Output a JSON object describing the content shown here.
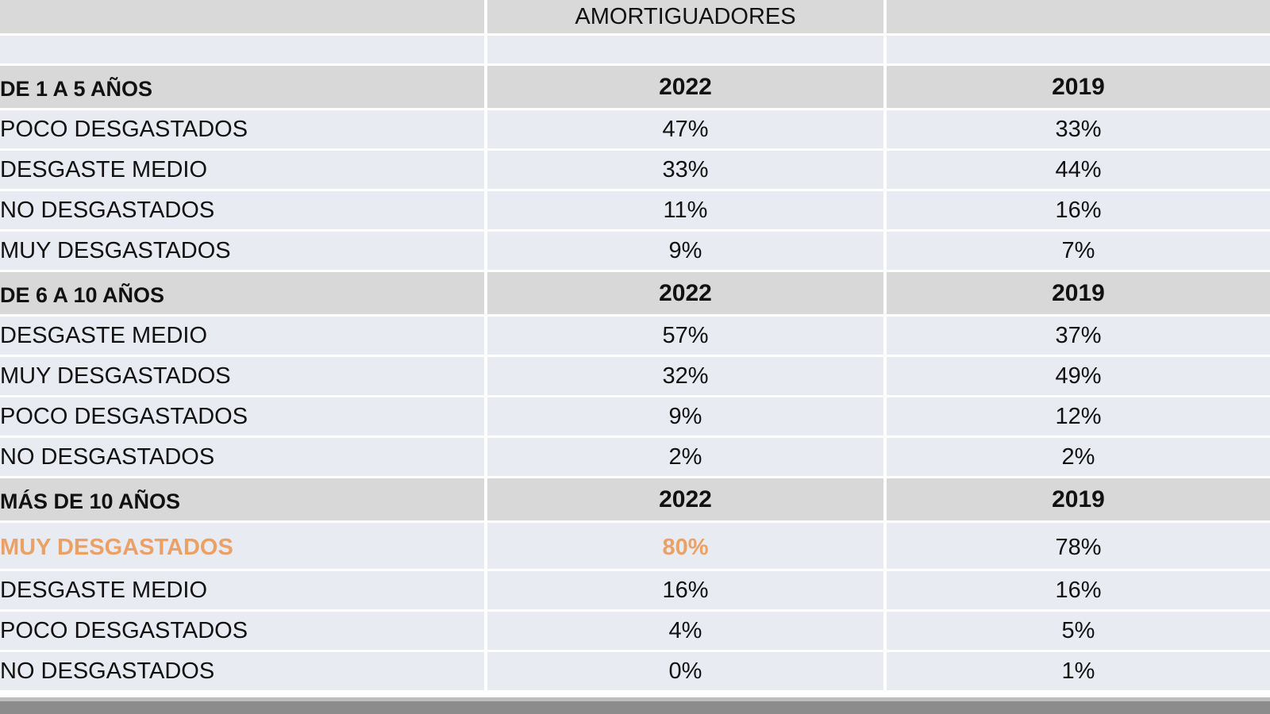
{
  "header": {
    "title": "AMORTIGUADORES"
  },
  "sections": [
    {
      "label": "DE 1 A 5 AÑOS",
      "year_a": "2022",
      "year_b": "2019",
      "rows": [
        {
          "label": "POCO DESGASTADOS",
          "a": "47%",
          "b": "33%"
        },
        {
          "label": "DESGASTE MEDIO",
          "a": "33%",
          "b": "44%"
        },
        {
          "label": "NO DESGASTADOS",
          "a": "11%",
          "b": "16%"
        },
        {
          "label": "MUY DESGASTADOS",
          "a": "9%",
          "b": "7%"
        }
      ]
    },
    {
      "label": "DE 6 A 10 AÑOS",
      "year_a": "2022",
      "year_b": "2019",
      "rows": [
        {
          "label": "DESGASTE MEDIO",
          "a": "57%",
          "b": "37%"
        },
        {
          "label": "MUY DESGASTADOS",
          "a": "32%",
          "b": "49%"
        },
        {
          "label": "POCO DESGASTADOS",
          "a": "9%",
          "b": "12%"
        },
        {
          "label": "NO DESGASTADOS",
          "a": "2%",
          "b": "2%"
        }
      ]
    },
    {
      "label": "MÁS DE 10 AÑOS",
      "year_a": "2022",
      "year_b": "2019",
      "rows": [
        {
          "label": "MUY DESGASTADOS",
          "a": "80%",
          "b": "78%"
        },
        {
          "label": "DESGASTE MEDIO",
          "a": "16%",
          "b": "16%"
        },
        {
          "label": "POCO DESGASTADOS",
          "a": "4%",
          "b": "5%"
        },
        {
          "label": "NO DESGASTADOS",
          "a": "0%",
          "b": "1%"
        }
      ]
    }
  ],
  "colors": {
    "highlight": "#eba064",
    "section_bg": "#d8d8d8",
    "row_bg": "#e9ebf3"
  }
}
